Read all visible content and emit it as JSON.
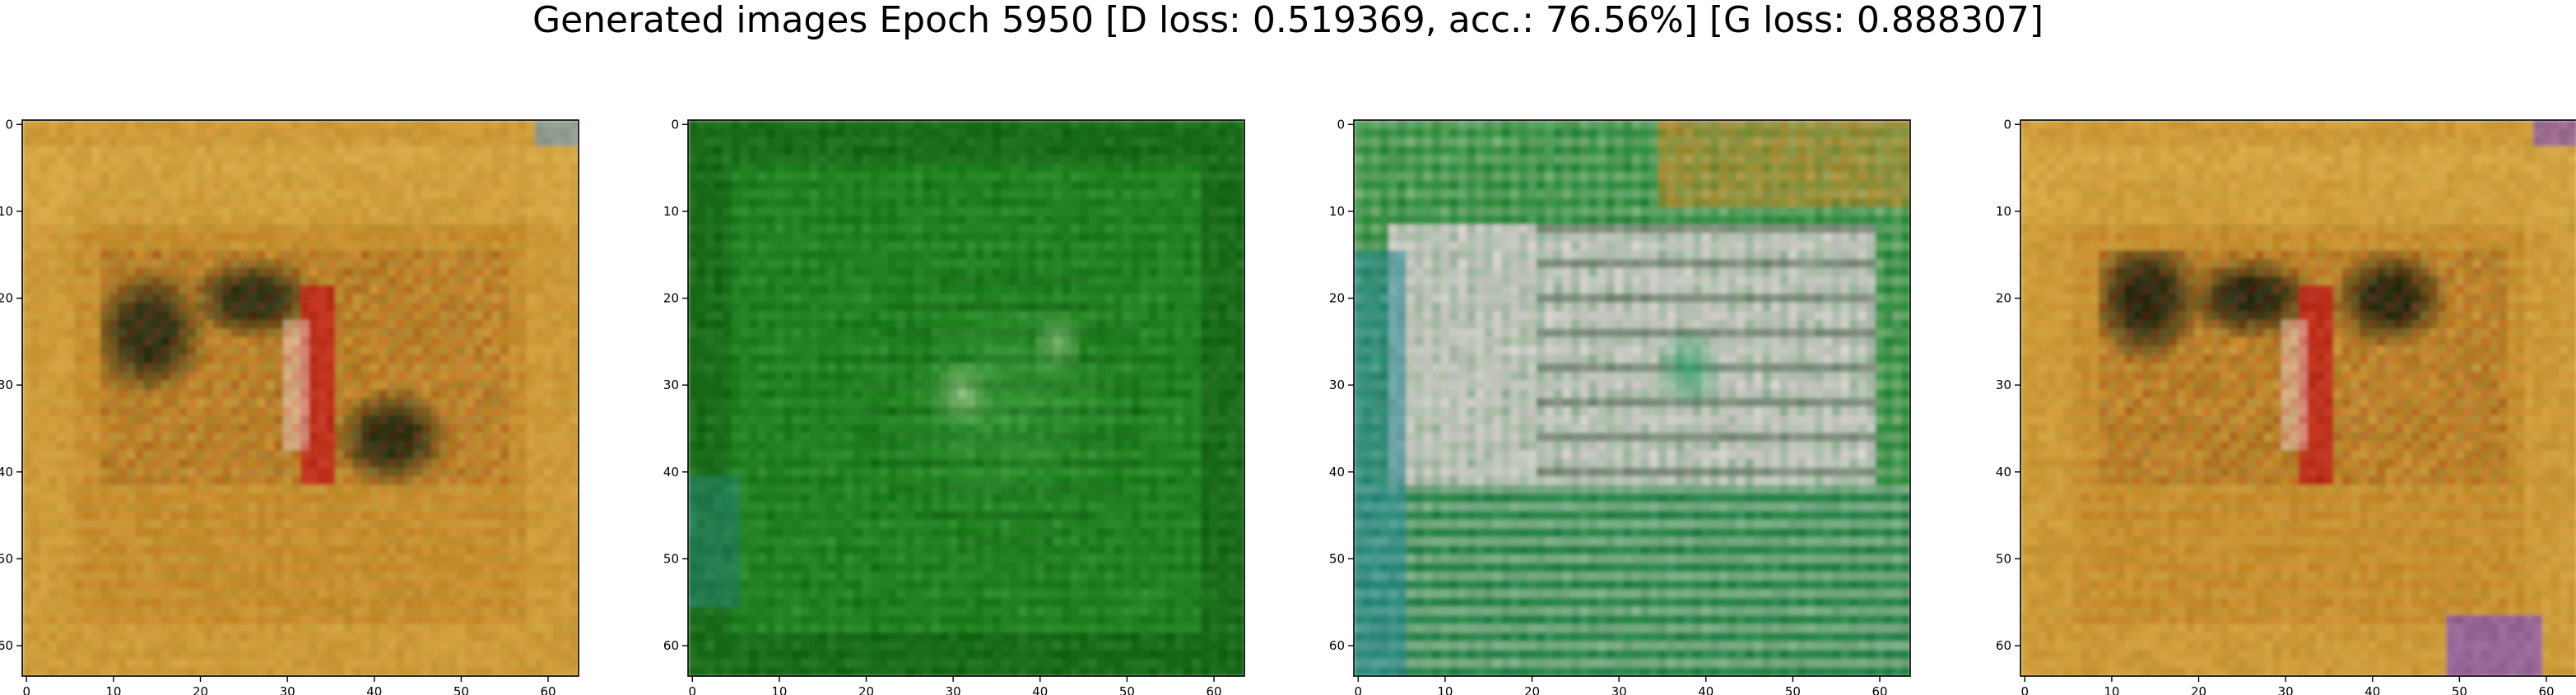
{
  "figure": {
    "title": "Generated images Epoch 5950 [D loss: 0.519369, acc.: 76.56%] [G loss: 0.888307]"
  },
  "axis": {
    "y_ticks": [
      "0",
      "10",
      "20",
      "30",
      "40",
      "50",
      "60"
    ],
    "x_ticks": [
      "0",
      "10",
      "20",
      "30",
      "40",
      "50",
      "60"
    ],
    "x_range": [
      -0.5,
      63.5
    ],
    "y_range": [
      -0.5,
      63.5
    ]
  },
  "panels": [
    {
      "name": "sample-1",
      "palette": {
        "base": "#c88a2a",
        "border_light": "#d9b04a",
        "stripe": "#b8a94c",
        "dark": "#1e2a12",
        "red": "#c01818",
        "pink": "#e8c8c0",
        "accent": "#6a9cc8"
      },
      "features": [
        "warm-orange-frame",
        "dark-clusters-center",
        "red-stripe-center",
        "light-top-band"
      ]
    },
    {
      "name": "sample-2",
      "palette": {
        "base": "#1a7a1a",
        "border_light": "#2a8a2a",
        "stripe": "#4aa84a",
        "dark": "#0a3a0a",
        "red": "#6abf6a",
        "pink": "#c8d8b0",
        "accent": "#2a8a8a"
      },
      "features": [
        "green-field",
        "light-green-center",
        "faint-pink-patch"
      ]
    },
    {
      "name": "sample-3",
      "palette": {
        "base": "#2a8a3a",
        "border_light": "#d08a2a",
        "stripe": "#e8e0d0",
        "dark": "#0a2a10",
        "red": "#d8a8c8",
        "pink": "#e6d0e0",
        "accent": "#2a8a9a"
      },
      "features": [
        "orange-top-right",
        "pink-white-central-block",
        "teal-left-edge",
        "green-bottom"
      ]
    },
    {
      "name": "sample-4",
      "palette": {
        "base": "#c88a2a",
        "border_light": "#d9b04a",
        "stripe": "#b8a94c",
        "dark": "#1a2410",
        "red": "#c01818",
        "pink": "#e8c8c0",
        "accent": "#7a4ac8"
      },
      "features": [
        "warm-orange-frame",
        "dark-clusters-top",
        "red-stripe-center",
        "purple-bottom-right"
      ]
    }
  ]
}
